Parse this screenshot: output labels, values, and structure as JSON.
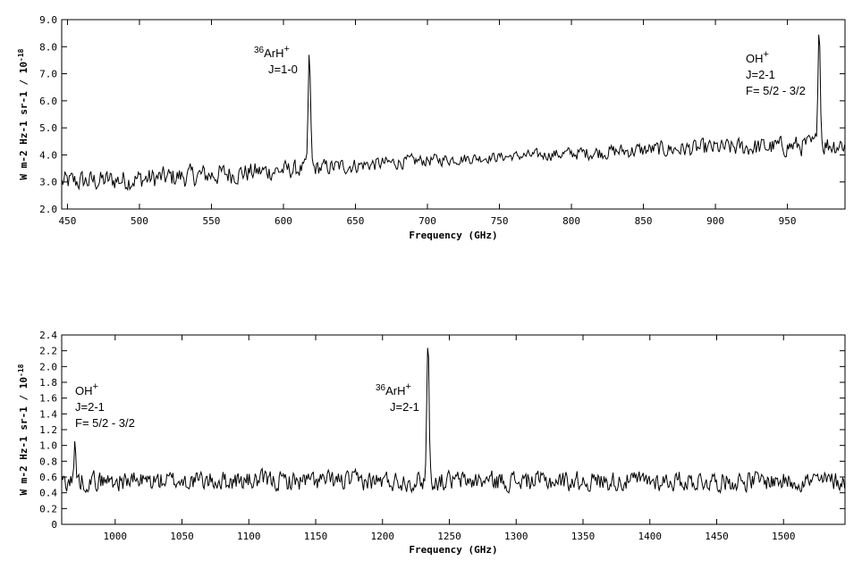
{
  "chart_data": [
    {
      "type": "line",
      "xlabel": "Frequency (GHz)",
      "ylabel": "W m-2 Hz-1 sr-1 / 10",
      "ylabel_exp": "-18",
      "xlim": [
        446,
        990
      ],
      "ylim": [
        2.0,
        9.0
      ],
      "xticks": [
        450,
        500,
        550,
        600,
        650,
        700,
        750,
        800,
        850,
        900,
        950
      ],
      "yticks": [
        "2.0",
        "3.0",
        "4.0",
        "5.0",
        "6.0",
        "7.0",
        "8.0",
        "9.0"
      ],
      "grid": false,
      "baseline": [
        [
          446,
          3.0
        ],
        [
          500,
          3.1
        ],
        [
          560,
          3.3
        ],
        [
          620,
          3.5
        ],
        [
          700,
          3.8
        ],
        [
          780,
          4.0
        ],
        [
          860,
          4.2
        ],
        [
          940,
          4.3
        ],
        [
          990,
          4.4
        ]
      ],
      "noise": [
        [
          446,
          0.45
        ],
        [
          560,
          0.45
        ],
        [
          660,
          0.3
        ],
        [
          760,
          0.2
        ],
        [
          820,
          0.3
        ],
        [
          990,
          0.45
        ]
      ],
      "peaks": [
        {
          "x": 618,
          "y": 7.6,
          "width": 1.2
        },
        {
          "x": 972,
          "y": 8.8,
          "width": 1.2
        }
      ],
      "annotations": [
        {
          "iso": "36",
          "species": "ArH",
          "charge": "+",
          "lines": [
            "J=1-0"
          ]
        },
        {
          "iso": "",
          "species": "OH",
          "charge": "+",
          "lines": [
            "J=2-1",
            "F= 5/2 - 3/2"
          ]
        }
      ]
    },
    {
      "type": "line",
      "xlabel": "Frequency (GHz)",
      "ylabel": "W m-2 Hz-1 sr-1 / 10",
      "ylabel_exp": "-18",
      "xlim": [
        960,
        1546
      ],
      "ylim": [
        0.0,
        2.4
      ],
      "xticks": [
        1000,
        1050,
        1100,
        1150,
        1200,
        1250,
        1300,
        1350,
        1400,
        1450,
        1500
      ],
      "yticks": [
        "0",
        "0.2",
        "0.4",
        "0.6",
        "0.8",
        "1.0",
        "1.2",
        "1.4",
        "1.6",
        "1.8",
        "2.0",
        "2.2",
        "2.4"
      ],
      "grid": false,
      "baseline": [
        [
          960,
          0.55
        ],
        [
          1546,
          0.55
        ]
      ],
      "noise": [
        [
          960,
          0.14
        ],
        [
          1546,
          0.14
        ]
      ],
      "peaks": [
        {
          "x": 970,
          "y": 1.02,
          "width": 1.0
        },
        {
          "x": 1234,
          "y": 2.36,
          "width": 1.2
        }
      ],
      "annotations": [
        {
          "iso": "",
          "species": "OH",
          "charge": "+",
          "lines": [
            "J=2-1",
            "F= 5/2 - 3/2"
          ]
        },
        {
          "iso": "36",
          "species": "ArH",
          "charge": "+",
          "lines": [
            "J=2-1"
          ]
        }
      ]
    }
  ]
}
